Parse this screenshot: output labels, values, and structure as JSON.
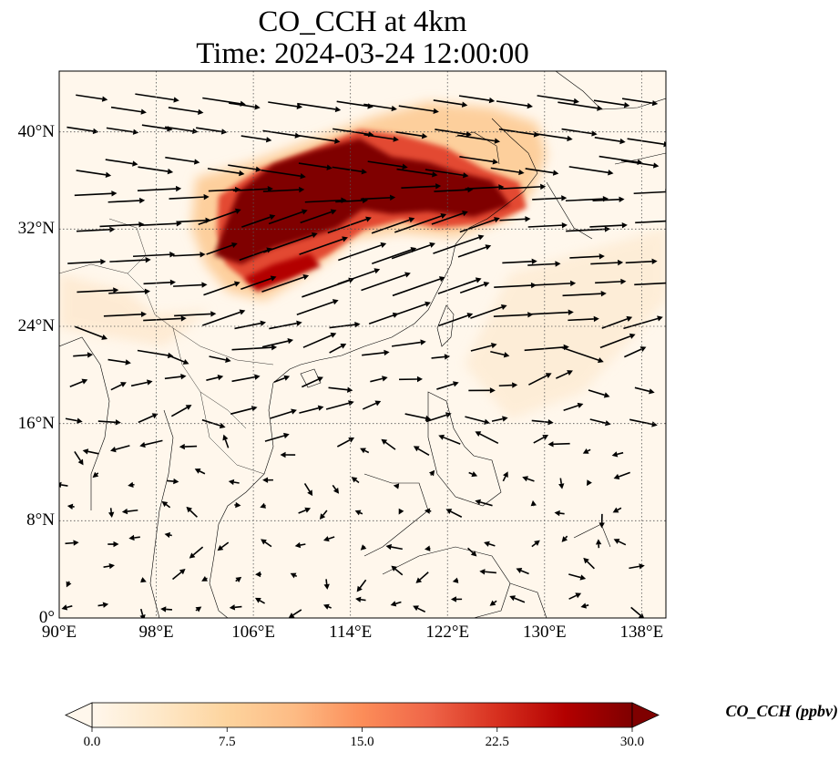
{
  "title": {
    "line1": "CO_CCH at 4km",
    "line2": "Time: 2024-03-24 12:00:00"
  },
  "map": {
    "projection": "plate-carree",
    "lon_range": [
      90,
      140
    ],
    "lat_range": [
      0,
      45
    ],
    "grid": true,
    "lat_ticks": [
      {
        "value": 0,
        "label": "0°"
      },
      {
        "value": 8,
        "label": "8°N"
      },
      {
        "value": 16,
        "label": "16°N"
      },
      {
        "value": 24,
        "label": "24°N"
      },
      {
        "value": 32,
        "label": "32°N"
      },
      {
        "value": 40,
        "label": "40°N"
      }
    ],
    "lon_ticks": [
      {
        "value": 90,
        "label": "90°E"
      },
      {
        "value": 98,
        "label": "98°E"
      },
      {
        "value": 106,
        "label": "106°E"
      },
      {
        "value": 114,
        "label": "114°E"
      },
      {
        "value": 122,
        "label": "122°E"
      },
      {
        "value": 130,
        "label": "130°E"
      },
      {
        "value": 138,
        "label": "138°E"
      }
    ],
    "plume_color": "#7f0000",
    "background_color": "#fff7ec",
    "vector_color": "#000000"
  },
  "colorbar": {
    "label": "CO_CCH (ppbv)",
    "min": 0.0,
    "max": 30.0,
    "extend": "both",
    "ticks": [
      "0.0",
      "7.5",
      "15.0",
      "22.5",
      "30.0"
    ],
    "colors": [
      "#fff7ec",
      "#fee8c8",
      "#fdd49e",
      "#fdbb84",
      "#fc8d59",
      "#ef6548",
      "#d7301f",
      "#b30000",
      "#7f0000"
    ]
  }
}
